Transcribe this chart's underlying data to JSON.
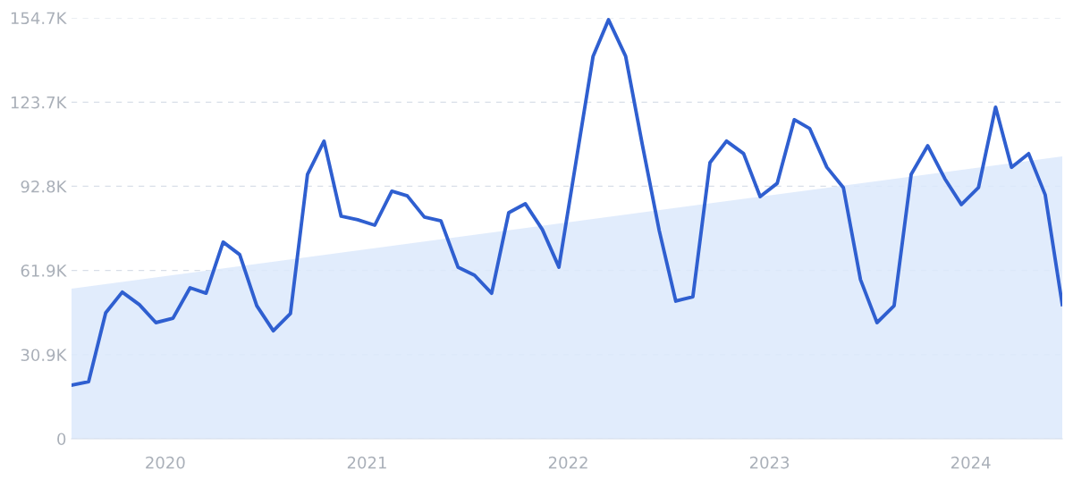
{
  "chart_data": {
    "type": "line",
    "xlim": [
      "2019-07",
      "2024-06"
    ],
    "xticks": [
      "2020",
      "2021",
      "2022",
      "2023",
      "2024"
    ],
    "ylim": [
      0,
      154700
    ],
    "yticks": [
      {
        "value": 0,
        "label": "0"
      },
      {
        "value": 30900,
        "label": "30.9K"
      },
      {
        "value": 61900,
        "label": "61.9K"
      },
      {
        "value": 92800,
        "label": "92.8K"
      },
      {
        "value": 123700,
        "label": "123.7K"
      },
      {
        "value": 154700,
        "label": "154.7K"
      }
    ],
    "grid": "y",
    "legend": false,
    "series": [
      {
        "type": "area",
        "color": "#dce9fb",
        "x": [
          "2019-07",
          "2024-06"
        ],
        "values": [
          55200,
          103800
        ]
      },
      {
        "color": "#2f5fd0",
        "x": [
          "2019-07",
          "2019-08",
          "2019-09",
          "2019-10",
          "2019-11",
          "2019-12",
          "2020-01",
          "2020-02",
          "2020-03",
          "2020-04",
          "2020-05",
          "2020-06",
          "2020-07",
          "2020-08",
          "2020-09",
          "2020-10",
          "2020-11",
          "2020-12",
          "2021-01",
          "2021-02",
          "2021-03",
          "2021-04",
          "2021-05",
          "2021-06",
          "2021-07",
          "2021-08",
          "2021-09",
          "2021-10",
          "2021-11",
          "2021-12",
          "2022-01",
          "2022-02",
          "2022-03",
          "2022-04",
          "2022-05",
          "2022-06",
          "2022-07",
          "2022-08",
          "2022-09",
          "2022-10",
          "2022-11",
          "2022-12",
          "2023-01",
          "2023-02",
          "2023-03",
          "2023-04",
          "2023-05",
          "2023-06",
          "2023-07",
          "2023-08",
          "2023-09",
          "2023-10",
          "2023-11",
          "2023-12",
          "2024-01",
          "2024-02",
          "2024-03",
          "2024-04",
          "2024-05",
          "2024-06"
        ],
        "values": [
          19700,
          21000,
          46300,
          53900,
          49300,
          42700,
          44300,
          55500,
          53500,
          72300,
          67700,
          48900,
          39700,
          46000,
          97200,
          109400,
          81800,
          80500,
          78500,
          91000,
          89300,
          81500,
          80100,
          63100,
          60100,
          53500,
          83100,
          86400,
          76900,
          63100,
          101800,
          140600,
          154000,
          140600,
          108400,
          76500,
          50600,
          52200,
          101500,
          109400,
          104800,
          89000,
          93900,
          117300,
          114000,
          99800,
          92300,
          58500,
          42700,
          48900,
          97200,
          107700,
          95600,
          86100,
          92300,
          121900,
          99800,
          104800,
          89700,
          49300
        ]
      }
    ]
  }
}
